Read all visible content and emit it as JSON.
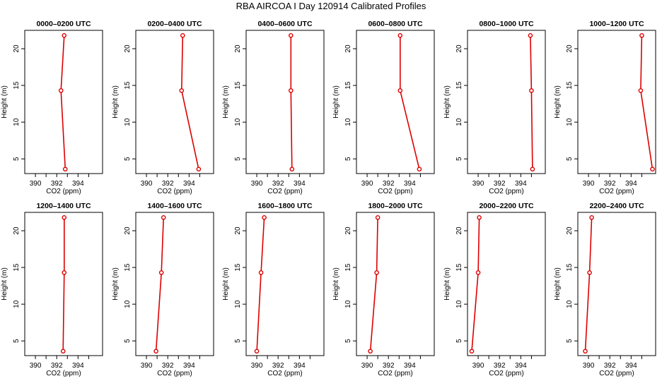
{
  "title": "RBA AIRCOA I  Day 120914  Calibrated Profiles",
  "colors": {
    "series": "#dd0000",
    "axis": "#000000"
  },
  "chart_data": {
    "type": "line",
    "xlabel": "CO2 (ppm)",
    "ylabel": "Height (m)",
    "xlim": [
      389,
      396.3
    ],
    "ylim": [
      3,
      22.5
    ],
    "xticks": [
      390,
      392,
      394
    ],
    "xtick_labels": [
      "390",
      "392",
      "394"
    ],
    "yticks": [
      5,
      10,
      15,
      20
    ],
    "ytick_labels": [
      "5",
      "10",
      "15",
      "20"
    ],
    "heights": [
      3.6,
      14.3,
      21.8
    ],
    "panels": [
      {
        "title": "0000–0200 UTC",
        "values": [
          392.8,
          392.4,
          392.7
        ]
      },
      {
        "title": "0200–0400 UTC",
        "values": [
          394.9,
          393.3,
          393.4
        ]
      },
      {
        "title": "0400–0600 UTC",
        "values": [
          393.3,
          393.2,
          393.2
        ]
      },
      {
        "title": "0600–0800 UTC",
        "values": [
          394.9,
          393.1,
          393.1
        ]
      },
      {
        "title": "0800–1000 UTC",
        "values": [
          395.1,
          395.0,
          394.9
        ]
      },
      {
        "title": "1000–1200 UTC",
        "values": [
          396.0,
          394.9,
          395.0
        ]
      },
      {
        "title": "1200–1400 UTC",
        "values": [
          392.6,
          392.7,
          392.7
        ]
      },
      {
        "title": "1400–1600 UTC",
        "values": [
          390.9,
          391.4,
          391.6
        ]
      },
      {
        "title": "1600–1800 UTC",
        "values": [
          390.0,
          390.4,
          390.7
        ]
      },
      {
        "title": "1800–2000 UTC",
        "values": [
          390.3,
          390.9,
          391.0
        ]
      },
      {
        "title": "2000–2200 UTC",
        "values": [
          389.4,
          390.0,
          390.1
        ]
      },
      {
        "title": "2200–2400 UTC",
        "values": [
          389.7,
          390.1,
          390.3
        ]
      }
    ]
  }
}
